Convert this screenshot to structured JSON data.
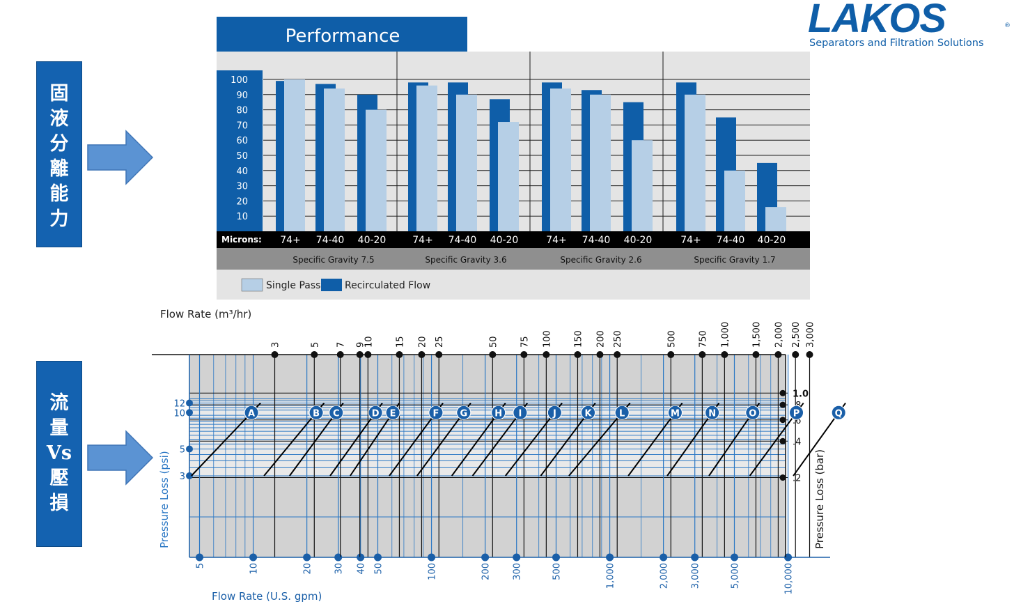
{
  "left_labels": {
    "top": [
      "固",
      "液",
      "分",
      "離",
      "能",
      "力"
    ],
    "bottom": [
      "流",
      "量",
      "Vs",
      "壓",
      "損"
    ]
  },
  "logo": {
    "name": "LAKOS",
    "reg": "®",
    "tagline": "Separators and Filtration Solutions"
  },
  "chart_data": [
    {
      "type": "bar",
      "title": "Performance",
      "ylim": [
        0,
        100
      ],
      "y_ticks": [
        10,
        20,
        30,
        40,
        50,
        60,
        70,
        80,
        90,
        100
      ],
      "x_axis_label": "Microns:",
      "groups": [
        {
          "name": "Specific Gravity 7.5",
          "categories": [
            "74+",
            "74-40",
            "40-20"
          ]
        },
        {
          "name": "Specific Gravity 3.6",
          "categories": [
            "74+",
            "74-40",
            "40-20"
          ]
        },
        {
          "name": "Specific Gravity 2.6",
          "categories": [
            "74+",
            "74-40",
            "40-20"
          ]
        },
        {
          "name": "Specific Gravity 1.7",
          "categories": [
            "74+",
            "74-40",
            "40-20"
          ]
        }
      ],
      "series": [
        {
          "name": "Single Pass",
          "color": "#b6cfe6",
          "values": [
            [
              100,
              94,
              80
            ],
            [
              96,
              90,
              72
            ],
            [
              94,
              90,
              60
            ],
            [
              90,
              40,
              16
            ]
          ]
        },
        {
          "name": "Recirculated Flow",
          "color": "#0f5ea8",
          "values": [
            [
              99,
              97,
              90
            ],
            [
              98,
              98,
              87
            ],
            [
              98,
              93,
              85
            ],
            [
              98,
              75,
              45
            ]
          ]
        }
      ],
      "legend": [
        "Single Pass",
        "Recirculated Flow"
      ]
    },
    {
      "type": "line",
      "title": "",
      "top_axis_label": "Flow Rate (m³/hr)",
      "bottom_axis_label": "Flow Rate (U.S. gpm)",
      "left_axis_label": "Pressure Loss (psi)",
      "right_axis_label": "Pressure Loss (bar)",
      "x_scale": "log",
      "top_ticks": [
        "3",
        "5",
        "7",
        "9",
        "10",
        "15",
        "20",
        "25",
        "50",
        "75",
        "100",
        "150",
        "200",
        "250",
        "500",
        "750",
        "1,000",
        "1,500",
        "2,000",
        "2,500",
        "3,000"
      ],
      "bottom_ticks": [
        "5",
        "10",
        "20",
        "30",
        "40",
        "50",
        "100",
        "200",
        "300",
        "500",
        "1,000",
        "2,000",
        "3,000",
        "5,000",
        "10,000"
      ],
      "left_ticks": [
        "12",
        "10",
        "5",
        "3"
      ],
      "right_ticks": [
        "1.0",
        ".8",
        ".6",
        ".4",
        ".2"
      ],
      "models": [
        "A",
        "B",
        "C",
        "D",
        "E",
        "F",
        "G",
        "H",
        "I",
        "J",
        "K",
        "L",
        "M",
        "N",
        "O",
        "P",
        "Q"
      ],
      "model_curves_psi_vs_gpm": [
        {
          "model": "A",
          "points": [
            [
              4.5,
              3
            ],
            [
              11,
              12
            ]
          ]
        },
        {
          "model": "B",
          "points": [
            [
              11.5,
              3
            ],
            [
              25,
              12
            ]
          ]
        },
        {
          "model": "C",
          "points": [
            [
              16,
              3
            ],
            [
              32,
              12
            ]
          ]
        },
        {
          "model": "D",
          "points": [
            [
              27,
              3
            ],
            [
              53,
              12
            ]
          ]
        },
        {
          "model": "E",
          "points": [
            [
              35,
              3
            ],
            [
              66,
              12
            ]
          ]
        },
        {
          "model": "F",
          "points": [
            [
              58,
              3
            ],
            [
              116,
              12
            ]
          ]
        },
        {
          "model": "G",
          "points": [
            [
              83,
              3
            ],
            [
              166,
              12
            ]
          ]
        },
        {
          "model": "H",
          "points": [
            [
              130,
              3
            ],
            [
              260,
              12
            ]
          ]
        },
        {
          "model": "I",
          "points": [
            [
              170,
              3
            ],
            [
              345,
              12
            ]
          ]
        },
        {
          "model": "J",
          "points": [
            [
              260,
              3
            ],
            [
              540,
              12
            ]
          ]
        },
        {
          "model": "K",
          "points": [
            [
              410,
              3
            ],
            [
              830,
              12
            ]
          ]
        },
        {
          "model": "L",
          "points": [
            [
              590,
              3
            ],
            [
              1300,
              12
            ]
          ]
        },
        {
          "model": "M",
          "points": [
            [
              1270,
              3
            ],
            [
              2550,
              12
            ]
          ]
        },
        {
          "model": "N",
          "points": [
            [
              2100,
              3
            ],
            [
              4100,
              12
            ]
          ]
        },
        {
          "model": "O",
          "points": [
            [
              3600,
              3
            ],
            [
              6900,
              12
            ]
          ]
        },
        {
          "model": "P",
          "points": [
            [
              6100,
              3
            ],
            [
              12200,
              12
            ]
          ]
        },
        {
          "model": "Q",
          "points": [
            [
              10700,
              3
            ],
            [
              21000,
              12
            ]
          ]
        }
      ]
    }
  ]
}
